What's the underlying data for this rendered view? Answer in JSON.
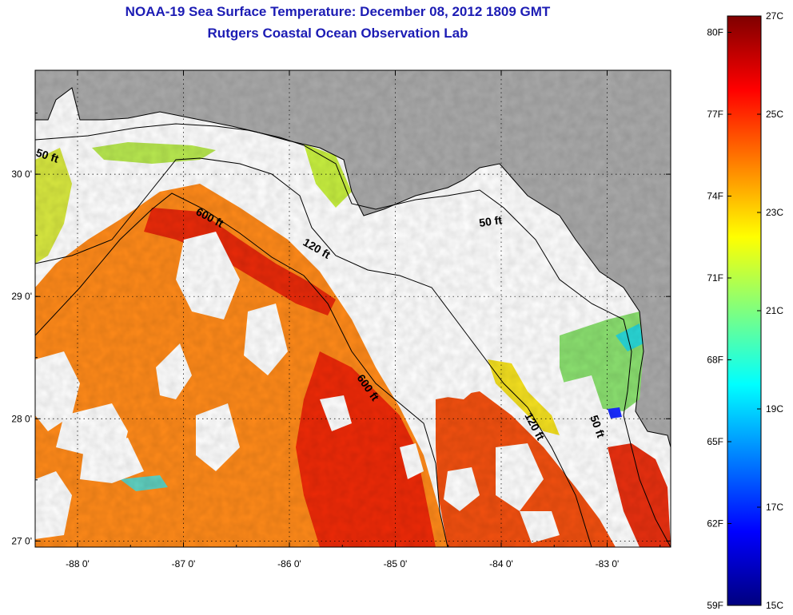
{
  "header": {
    "title": "NOAA-19 Sea Surface Temperature:  December 08, 2012 1809 GMT",
    "subtitle": "Rutgers Coastal Ocean Observation Lab"
  },
  "map": {
    "lon_range": [
      -88.4,
      -82.4
    ],
    "lat_range": [
      26.95,
      30.85
    ],
    "x_ticks": [
      {
        "value": -88,
        "label": "-88 0'"
      },
      {
        "value": -87,
        "label": "-87 0'"
      },
      {
        "value": -86,
        "label": "-86 0'"
      },
      {
        "value": -85,
        "label": "-85 0'"
      },
      {
        "value": -84,
        "label": "-84 0'"
      },
      {
        "value": -83,
        "label": "-83 0'"
      }
    ],
    "y_ticks": [
      {
        "value": 27,
        "label": "27 0'"
      },
      {
        "value": 28,
        "label": "28 0'"
      },
      {
        "value": 29,
        "label": "29 0'"
      },
      {
        "value": 30,
        "label": "30 0'"
      }
    ],
    "grid": true,
    "land_color": "#aaaaaa",
    "cloud_color": "#ffffff",
    "contour_labels": {
      "c50_west": "50 ft",
      "c50_east": "50 ft",
      "c50_south": "50 ft",
      "c600_north": "600 ft",
      "c600_south": "600 ft",
      "c120_north": "120 ft",
      "c120_south": "120 ft"
    }
  },
  "colorbar": {
    "min_c": 15,
    "max_c": 27,
    "fahrenheit_labels": [
      "80F",
      "77F",
      "74F",
      "71F",
      "68F",
      "65F",
      "62F",
      "59F"
    ],
    "celsius_labels": [
      "27C",
      "25C",
      "23C",
      "21C",
      "19C",
      "17C",
      "15C"
    ],
    "colors": [
      "#00007f",
      "#0000ff",
      "#00ffff",
      "#7fff7f",
      "#ffff00",
      "#ff7f00",
      "#ff0000",
      "#7f0000"
    ]
  }
}
